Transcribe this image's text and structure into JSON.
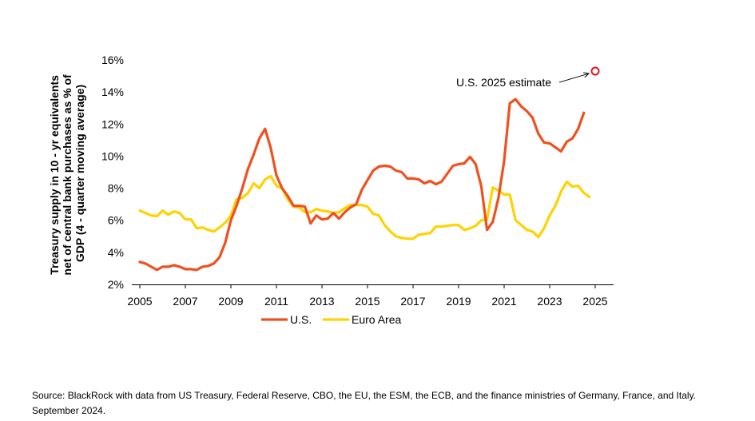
{
  "chart_data": {
    "type": "line",
    "title": "",
    "xlabel": "",
    "ylabel_lines": [
      "Treasury supply in 10 - yr equivalents",
      "net of central bank purchases as % of",
      "GDP (4 - quarter moving average)"
    ],
    "xlim": [
      2005,
      2025
    ],
    "ylim": [
      2,
      16
    ],
    "x_ticks": [
      "2005",
      "2007",
      "2009",
      "2011",
      "2013",
      "2015",
      "2017",
      "2019",
      "2021",
      "2023",
      "2025"
    ],
    "y_ticks": [
      "2%",
      "4%",
      "6%",
      "8%",
      "10%",
      "12%",
      "14%",
      "16%"
    ],
    "legend_position": "bottom",
    "series": [
      {
        "name": "U.S.",
        "color": "#f0501e",
        "points": [
          [
            2005.0,
            3.4
          ],
          [
            2005.25,
            3.3
          ],
          [
            2005.5,
            3.1
          ],
          [
            2005.75,
            2.9
          ],
          [
            2006.0,
            3.1
          ],
          [
            2006.25,
            3.1
          ],
          [
            2006.5,
            3.2
          ],
          [
            2006.75,
            3.1
          ],
          [
            2007.0,
            2.95
          ],
          [
            2007.25,
            2.95
          ],
          [
            2007.5,
            2.9
          ],
          [
            2007.75,
            3.1
          ],
          [
            2008.0,
            3.15
          ],
          [
            2008.25,
            3.3
          ],
          [
            2008.5,
            3.7
          ],
          [
            2008.75,
            4.6
          ],
          [
            2009.0,
            6.0
          ],
          [
            2009.25,
            6.9
          ],
          [
            2009.5,
            8.0
          ],
          [
            2009.75,
            9.2
          ],
          [
            2010.0,
            10.1
          ],
          [
            2010.25,
            11.1
          ],
          [
            2010.5,
            11.7
          ],
          [
            2010.75,
            10.5
          ],
          [
            2011.0,
            8.8
          ],
          [
            2011.25,
            8.0
          ],
          [
            2011.5,
            7.5
          ],
          [
            2011.75,
            6.9
          ],
          [
            2012.0,
            6.9
          ],
          [
            2012.25,
            6.85
          ],
          [
            2012.5,
            5.8
          ],
          [
            2012.75,
            6.3
          ],
          [
            2013.0,
            6.05
          ],
          [
            2013.25,
            6.1
          ],
          [
            2013.5,
            6.45
          ],
          [
            2013.75,
            6.1
          ],
          [
            2014.0,
            6.5
          ],
          [
            2014.25,
            6.8
          ],
          [
            2014.5,
            7.0
          ],
          [
            2014.75,
            7.9
          ],
          [
            2015.0,
            8.5
          ],
          [
            2015.25,
            9.1
          ],
          [
            2015.5,
            9.35
          ],
          [
            2015.75,
            9.4
          ],
          [
            2016.0,
            9.35
          ],
          [
            2016.25,
            9.1
          ],
          [
            2016.5,
            9.0
          ],
          [
            2016.75,
            8.6
          ],
          [
            2017.0,
            8.6
          ],
          [
            2017.25,
            8.55
          ],
          [
            2017.5,
            8.3
          ],
          [
            2017.75,
            8.45
          ],
          [
            2018.0,
            8.25
          ],
          [
            2018.25,
            8.4
          ],
          [
            2018.5,
            8.9
          ],
          [
            2018.75,
            9.4
          ],
          [
            2019.0,
            9.5
          ],
          [
            2019.25,
            9.55
          ],
          [
            2019.5,
            9.95
          ],
          [
            2019.75,
            9.5
          ],
          [
            2020.0,
            8.1
          ],
          [
            2020.25,
            5.4
          ],
          [
            2020.5,
            5.9
          ],
          [
            2020.75,
            7.4
          ],
          [
            2021.0,
            9.7
          ],
          [
            2021.25,
            13.3
          ],
          [
            2021.5,
            13.55
          ],
          [
            2021.75,
            13.1
          ],
          [
            2022.0,
            12.8
          ],
          [
            2022.25,
            12.4
          ],
          [
            2022.5,
            11.4
          ],
          [
            2022.75,
            10.85
          ],
          [
            2023.0,
            10.8
          ],
          [
            2023.25,
            10.55
          ],
          [
            2023.5,
            10.3
          ],
          [
            2023.75,
            10.9
          ],
          [
            2024.0,
            11.1
          ],
          [
            2024.25,
            11.7
          ],
          [
            2024.5,
            12.7
          ]
        ]
      },
      {
        "name": "Euro Area",
        "color": "#ffd200",
        "points": [
          [
            2005.0,
            6.6
          ],
          [
            2005.25,
            6.45
          ],
          [
            2005.5,
            6.3
          ],
          [
            2005.75,
            6.25
          ],
          [
            2006.0,
            6.6
          ],
          [
            2006.25,
            6.35
          ],
          [
            2006.5,
            6.55
          ],
          [
            2006.75,
            6.45
          ],
          [
            2007.0,
            6.05
          ],
          [
            2007.25,
            6.05
          ],
          [
            2007.5,
            5.5
          ],
          [
            2007.75,
            5.55
          ],
          [
            2008.0,
            5.4
          ],
          [
            2008.25,
            5.3
          ],
          [
            2008.5,
            5.55
          ],
          [
            2008.75,
            5.85
          ],
          [
            2009.0,
            6.3
          ],
          [
            2009.25,
            7.3
          ],
          [
            2009.5,
            7.4
          ],
          [
            2009.75,
            7.7
          ],
          [
            2010.0,
            8.3
          ],
          [
            2010.25,
            8.0
          ],
          [
            2010.5,
            8.55
          ],
          [
            2010.75,
            8.75
          ],
          [
            2011.0,
            8.15
          ],
          [
            2011.25,
            8.0
          ],
          [
            2011.5,
            7.3
          ],
          [
            2011.75,
            6.85
          ],
          [
            2012.0,
            6.8
          ],
          [
            2012.25,
            6.5
          ],
          [
            2012.5,
            6.5
          ],
          [
            2012.75,
            6.7
          ],
          [
            2013.0,
            6.6
          ],
          [
            2013.25,
            6.55
          ],
          [
            2013.5,
            6.45
          ],
          [
            2013.75,
            6.5
          ],
          [
            2014.0,
            6.75
          ],
          [
            2014.25,
            6.95
          ],
          [
            2014.5,
            6.95
          ],
          [
            2014.75,
            6.95
          ],
          [
            2015.0,
            6.85
          ],
          [
            2015.25,
            6.4
          ],
          [
            2015.5,
            6.3
          ],
          [
            2015.75,
            5.7
          ],
          [
            2016.0,
            5.3
          ],
          [
            2016.25,
            5.0
          ],
          [
            2016.5,
            4.9
          ],
          [
            2016.75,
            4.85
          ],
          [
            2017.0,
            4.85
          ],
          [
            2017.25,
            5.1
          ],
          [
            2017.5,
            5.15
          ],
          [
            2017.75,
            5.2
          ],
          [
            2018.0,
            5.6
          ],
          [
            2018.25,
            5.6
          ],
          [
            2018.5,
            5.65
          ],
          [
            2018.75,
            5.7
          ],
          [
            2019.0,
            5.7
          ],
          [
            2019.25,
            5.4
          ],
          [
            2019.5,
            5.5
          ],
          [
            2019.75,
            5.65
          ],
          [
            2020.0,
            6.0
          ],
          [
            2020.25,
            6.05
          ],
          [
            2020.5,
            8.05
          ],
          [
            2020.75,
            7.85
          ],
          [
            2021.0,
            7.6
          ],
          [
            2021.25,
            7.6
          ],
          [
            2021.5,
            6.0
          ],
          [
            2021.75,
            5.7
          ],
          [
            2022.0,
            5.4
          ],
          [
            2022.25,
            5.3
          ],
          [
            2022.5,
            4.95
          ],
          [
            2022.75,
            5.5
          ],
          [
            2023.0,
            6.3
          ],
          [
            2023.25,
            6.9
          ],
          [
            2023.5,
            7.8
          ],
          [
            2023.75,
            8.4
          ],
          [
            2024.0,
            8.1
          ],
          [
            2024.25,
            8.15
          ],
          [
            2024.5,
            7.7
          ],
          [
            2024.75,
            7.45
          ]
        ]
      }
    ],
    "annotation": {
      "label": "U.S. 2025 estimate",
      "x": 2025,
      "y": 15.3,
      "marker": "open-circle",
      "color": "#e8141e"
    }
  },
  "source": {
    "line1": "Source: BlackRock with data from US Treasury, Federal Reserve, CBO, the EU, the ESM, the ECB, and the finance ministries of Germany, France, and Italy.",
    "line2": "September 2024."
  }
}
